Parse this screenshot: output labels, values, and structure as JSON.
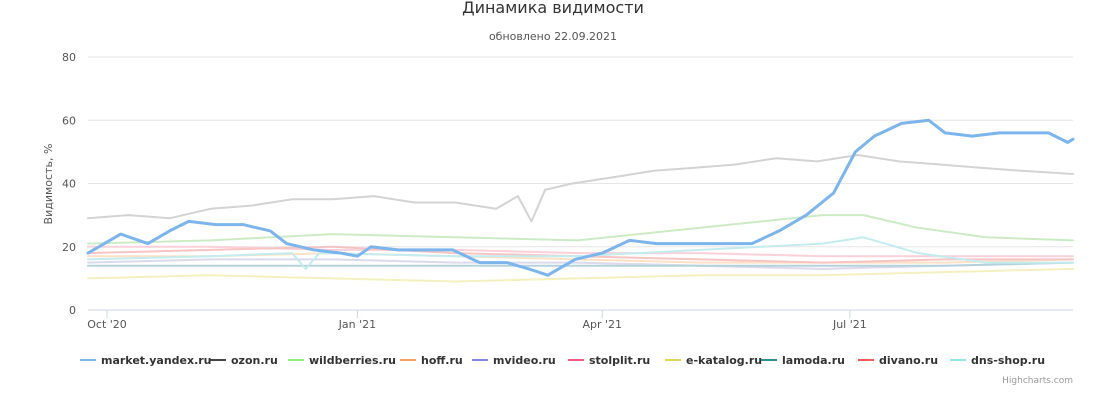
{
  "chart_data": {
    "type": "line",
    "title": "Динамика видимости",
    "subtitle": "обновлено 22.09.2021",
    "ylabel": "Видимость, %",
    "ylim": [
      0,
      80
    ],
    "yticks": [
      "0",
      "20",
      "40",
      "60",
      "80"
    ],
    "xlim": [
      "2020-09-24",
      "2021-09-21"
    ],
    "xticks": [
      {
        "date": "2020-10-01",
        "label": "Oct '20"
      },
      {
        "date": "2021-01-01",
        "label": "Jan '21"
      },
      {
        "date": "2021-04-01",
        "label": "Apr '21"
      },
      {
        "date": "2021-07-01",
        "label": "Jul '21"
      }
    ],
    "grid": true,
    "legend_position": "bottom",
    "credit": "Highcharts.com",
    "series": [
      {
        "name": "market.yandex.ru",
        "color": "#7cb5ec",
        "highlighted": true,
        "points": [
          [
            "2020-09-24",
            18
          ],
          [
            "2020-09-28",
            20
          ],
          [
            "2020-10-06",
            24
          ],
          [
            "2020-10-16",
            21
          ],
          [
            "2020-10-24",
            25
          ],
          [
            "2020-10-31",
            28
          ],
          [
            "2020-11-10",
            27
          ],
          [
            "2020-11-20",
            27
          ],
          [
            "2020-11-30",
            25
          ],
          [
            "2020-12-06",
            21
          ],
          [
            "2020-12-16",
            19
          ],
          [
            "2020-12-26",
            18
          ],
          [
            "2021-01-01",
            17
          ],
          [
            "2021-01-06",
            20
          ],
          [
            "2021-01-16",
            19
          ],
          [
            "2021-01-26",
            19
          ],
          [
            "2021-02-05",
            19
          ],
          [
            "2021-02-15",
            15
          ],
          [
            "2021-02-25",
            15
          ],
          [
            "2021-03-05",
            13
          ],
          [
            "2021-03-12",
            11
          ],
          [
            "2021-03-22",
            16
          ],
          [
            "2021-04-01",
            18
          ],
          [
            "2021-04-11",
            22
          ],
          [
            "2021-04-21",
            21
          ],
          [
            "2021-05-01",
            21
          ],
          [
            "2021-05-16",
            21
          ],
          [
            "2021-05-26",
            21
          ],
          [
            "2021-06-05",
            25
          ],
          [
            "2021-06-15",
            30
          ],
          [
            "2021-06-25",
            37
          ],
          [
            "2021-07-03",
            50
          ],
          [
            "2021-07-10",
            55
          ],
          [
            "2021-07-20",
            59
          ],
          [
            "2021-07-30",
            60
          ],
          [
            "2021-08-05",
            56
          ],
          [
            "2021-08-15",
            55
          ],
          [
            "2021-08-25",
            56
          ],
          [
            "2021-09-04",
            56
          ],
          [
            "2021-09-12",
            56
          ],
          [
            "2021-09-19",
            53
          ],
          [
            "2021-09-21",
            54
          ]
        ]
      },
      {
        "name": "ozon.ru",
        "color": "#d3d3d3",
        "highlighted": false,
        "points": [
          [
            "2020-09-24",
            29
          ],
          [
            "2020-10-09",
            30
          ],
          [
            "2020-10-24",
            29
          ],
          [
            "2020-11-08",
            32
          ],
          [
            "2020-11-23",
            33
          ],
          [
            "2020-12-08",
            35
          ],
          [
            "2020-12-23",
            35
          ],
          [
            "2021-01-07",
            36
          ],
          [
            "2021-01-22",
            34
          ],
          [
            "2021-02-06",
            34
          ],
          [
            "2021-02-21",
            32
          ],
          [
            "2021-03-01",
            36
          ],
          [
            "2021-03-06",
            28
          ],
          [
            "2021-03-11",
            38
          ],
          [
            "2021-03-21",
            40
          ],
          [
            "2021-04-05",
            42
          ],
          [
            "2021-04-20",
            44
          ],
          [
            "2021-05-05",
            45
          ],
          [
            "2021-05-20",
            46
          ],
          [
            "2021-06-04",
            48
          ],
          [
            "2021-06-19",
            47
          ],
          [
            "2021-07-04",
            49
          ],
          [
            "2021-07-19",
            47
          ],
          [
            "2021-08-03",
            46
          ],
          [
            "2021-08-18",
            45
          ],
          [
            "2021-09-02",
            44
          ],
          [
            "2021-09-21",
            43
          ]
        ]
      },
      {
        "name": "wildberries.ru",
        "color": "#ccebc5",
        "highlighted": false,
        "points": [
          [
            "2020-09-24",
            21
          ],
          [
            "2020-11-08",
            22
          ],
          [
            "2020-12-23",
            24
          ],
          [
            "2021-02-06",
            23
          ],
          [
            "2021-03-23",
            22
          ],
          [
            "2021-05-07",
            26
          ],
          [
            "2021-06-21",
            30
          ],
          [
            "2021-07-06",
            30
          ],
          [
            "2021-07-26",
            26
          ],
          [
            "2021-08-20",
            23
          ],
          [
            "2021-09-21",
            22
          ]
        ]
      },
      {
        "name": "hoff.ru",
        "color": "#fde0c5",
        "highlighted": false,
        "points": [
          [
            "2020-09-24",
            17
          ],
          [
            "2020-11-08",
            17
          ],
          [
            "2020-12-23",
            18
          ],
          [
            "2021-02-06",
            17
          ],
          [
            "2021-03-23",
            16
          ],
          [
            "2021-05-07",
            15
          ],
          [
            "2021-06-21",
            15
          ],
          [
            "2021-08-05",
            15
          ],
          [
            "2021-09-21",
            16
          ]
        ]
      },
      {
        "name": "mvideo.ru",
        "color": "#dadaeb",
        "highlighted": false,
        "points": [
          [
            "2020-09-24",
            15
          ],
          [
            "2020-11-08",
            16
          ],
          [
            "2020-12-23",
            16
          ],
          [
            "2021-02-06",
            15
          ],
          [
            "2021-03-23",
            15
          ],
          [
            "2021-05-07",
            14
          ],
          [
            "2021-06-21",
            13
          ],
          [
            "2021-08-05",
            14
          ],
          [
            "2021-09-21",
            15
          ]
        ]
      },
      {
        "name": "stolplit.ru",
        "color": "#fbd0d9",
        "highlighted": false,
        "points": [
          [
            "2020-09-24",
            20
          ],
          [
            "2020-11-08",
            20
          ],
          [
            "2020-12-23",
            19
          ],
          [
            "2021-02-06",
            19
          ],
          [
            "2021-03-23",
            18
          ],
          [
            "2021-05-07",
            18
          ],
          [
            "2021-06-21",
            17
          ],
          [
            "2021-08-05",
            17
          ],
          [
            "2021-09-21",
            17
          ]
        ]
      },
      {
        "name": "e-katalog.ru",
        "color": "#f5f0c0",
        "highlighted": false,
        "points": [
          [
            "2020-09-24",
            10
          ],
          [
            "2020-11-08",
            11
          ],
          [
            "2020-12-23",
            10
          ],
          [
            "2021-02-06",
            9
          ],
          [
            "2021-03-23",
            10
          ],
          [
            "2021-05-07",
            11
          ],
          [
            "2021-06-21",
            11
          ],
          [
            "2021-08-05",
            12
          ],
          [
            "2021-09-21",
            13
          ]
        ]
      },
      {
        "name": "lamoda.ru",
        "color": "#b5d2dc",
        "highlighted": false,
        "points": [
          [
            "2020-09-24",
            14
          ],
          [
            "2020-11-08",
            14
          ],
          [
            "2020-12-23",
            14
          ],
          [
            "2021-02-06",
            14
          ],
          [
            "2021-03-23",
            14
          ],
          [
            "2021-05-07",
            14
          ],
          [
            "2021-06-21",
            14
          ],
          [
            "2021-08-05",
            14
          ],
          [
            "2021-09-21",
            15
          ]
        ]
      },
      {
        "name": "divano.ru",
        "color": "#f7c4c4",
        "highlighted": false,
        "points": [
          [
            "2020-09-24",
            18
          ],
          [
            "2020-11-08",
            19
          ],
          [
            "2020-12-23",
            20
          ],
          [
            "2021-02-06",
            18
          ],
          [
            "2021-03-23",
            17
          ],
          [
            "2021-05-07",
            16
          ],
          [
            "2021-06-21",
            15
          ],
          [
            "2021-08-05",
            16
          ],
          [
            "2021-09-21",
            16
          ]
        ]
      },
      {
        "name": "dns-shop.ru",
        "color": "#c3ecee",
        "highlighted": false,
        "points": [
          [
            "2020-09-24",
            16
          ],
          [
            "2020-11-08",
            17
          ],
          [
            "2020-12-08",
            18
          ],
          [
            "2020-12-13",
            13
          ],
          [
            "2020-12-18",
            18
          ],
          [
            "2021-02-06",
            17
          ],
          [
            "2021-03-23",
            17
          ],
          [
            "2021-05-07",
            19
          ],
          [
            "2021-06-21",
            21
          ],
          [
            "2021-07-06",
            23
          ],
          [
            "2021-07-26",
            18
          ],
          [
            "2021-08-20",
            15
          ],
          [
            "2021-09-21",
            15
          ]
        ]
      }
    ],
    "legend_markers": {
      "market.yandex.ru": "#7cb5ec",
      "ozon.ru": "#434348",
      "wildberries.ru": "#90ed7d",
      "hoff.ru": "#f7a35c",
      "mvideo.ru": "#8085e9",
      "stolplit.ru": "#f15c80",
      "e-katalog.ru": "#e4d354",
      "lamoda.ru": "#2b908f",
      "divano.ru": "#f45b5b",
      "dns-shop.ru": "#91e8e1"
    }
  }
}
